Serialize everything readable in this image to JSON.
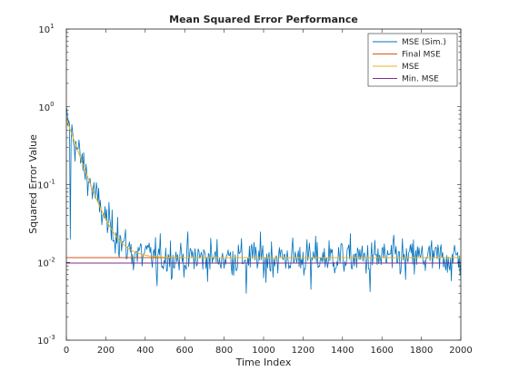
{
  "chart_data": {
    "type": "line",
    "title": "Mean Squared Error Performance",
    "xlabel": "Time Index",
    "ylabel": "Squared Error Value",
    "xlim": [
      0,
      2000
    ],
    "ylim": [
      0.001,
      10
    ],
    "yscale": "log",
    "grid": false,
    "legend_position": "top-right",
    "x_ticks": [
      0,
      200,
      400,
      600,
      800,
      1000,
      1200,
      1400,
      1600,
      1800,
      2000
    ],
    "x_tick_labels": [
      "0",
      "200",
      "400",
      "600",
      "800",
      "1000",
      "1200",
      "1400",
      "1600",
      "1800",
      "2000"
    ],
    "y_ticks": [
      0.001,
      0.01,
      0.1,
      1,
      10
    ],
    "y_tick_labels": [
      {
        "base": "10",
        "exp": "-3"
      },
      {
        "base": "10",
        "exp": "-2"
      },
      {
        "base": "10",
        "exp": "-1"
      },
      {
        "base": "10",
        "exp": "0"
      },
      {
        "base": "10",
        "exp": "1"
      }
    ],
    "series": [
      {
        "name": "MSE (Sim.)",
        "color": "#0072bd",
        "kind": "noisy",
        "start_value": 0.7,
        "decay_time_constant": 60,
        "floor_value": 0.0115,
        "noise_decades": 0.12,
        "spike_points": [
          [
            20,
            0.02
          ],
          [
            260,
            0.038
          ],
          [
            340,
            0.008
          ],
          [
            460,
            0.005
          ],
          [
            910,
            0.004
          ],
          [
            1010,
            0.0055
          ],
          [
            1240,
            0.0045
          ],
          [
            1540,
            0.0042
          ],
          [
            1720,
            0.006
          ],
          [
            1950,
            0.0058
          ]
        ]
      },
      {
        "name": "Final MSE",
        "color": "#d95319",
        "kind": "constant",
        "value": 0.0115
      },
      {
        "name": "MSE",
        "color": "#edb120",
        "kind": "theory",
        "start_value": 0.7,
        "decay_time_constant": 60,
        "floor_value": 0.0115
      },
      {
        "name": "Min. MSE",
        "color": "#7e2f8e",
        "kind": "constant",
        "value": 0.0098
      }
    ]
  }
}
